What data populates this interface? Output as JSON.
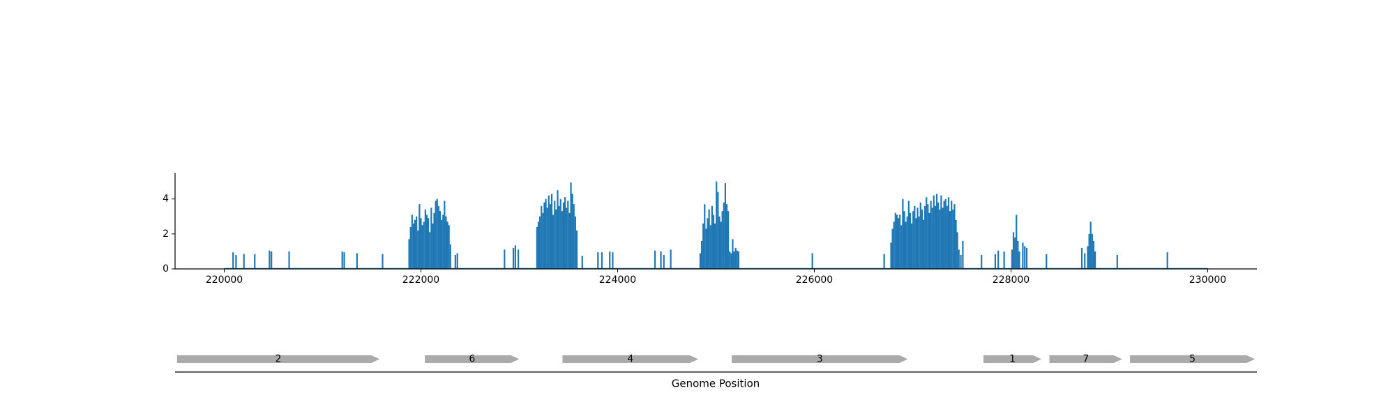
{
  "chart_data": [
    {
      "type": "bar",
      "title": "",
      "xlabel": "",
      "ylabel": "",
      "xlim": [
        219500,
        230500
      ],
      "ylim": [
        0,
        5.5
      ],
      "x_ticks": [
        220000,
        222000,
        224000,
        226000,
        228000,
        230000
      ],
      "x_tick_labels": [
        "220000",
        "222000",
        "224000",
        "226000",
        "228000",
        "230000"
      ],
      "y_ticks": [
        0,
        2,
        4
      ],
      "y_tick_labels": [
        "0",
        "2",
        "4"
      ],
      "grid": false,
      "series": [
        {
          "color": "#1f77b4",
          "points": [
            {
              "x": 220090,
              "y": 0.95
            },
            {
              "x": 220120,
              "y": 0.8
            },
            {
              "x": 220200,
              "y": 0.85
            },
            {
              "x": 220310,
              "y": 0.85
            },
            {
              "x": 220460,
              "y": 1.05
            },
            {
              "x": 220480,
              "y": 1.0
            },
            {
              "x": 220660,
              "y": 1.0
            },
            {
              "x": 221200,
              "y": 1.0
            },
            {
              "x": 221220,
              "y": 0.95
            },
            {
              "x": 221350,
              "y": 0.9
            },
            {
              "x": 221610,
              "y": 0.85
            },
            {
              "x": 221880,
              "y": 1.7
            },
            {
              "x": 221895,
              "y": 2.4
            },
            {
              "x": 221910,
              "y": 3.1
            },
            {
              "x": 221925,
              "y": 2.6
            },
            {
              "x": 221940,
              "y": 2.8
            },
            {
              "x": 221955,
              "y": 3.0
            },
            {
              "x": 221970,
              "y": 2.2
            },
            {
              "x": 221985,
              "y": 3.7
            },
            {
              "x": 222000,
              "y": 2.9
            },
            {
              "x": 222015,
              "y": 2.5
            },
            {
              "x": 222030,
              "y": 2.7
            },
            {
              "x": 222045,
              "y": 3.4
            },
            {
              "x": 222060,
              "y": 3.1
            },
            {
              "x": 222075,
              "y": 2.9
            },
            {
              "x": 222090,
              "y": 2.1
            },
            {
              "x": 222105,
              "y": 3.5
            },
            {
              "x": 222120,
              "y": 2.6
            },
            {
              "x": 222135,
              "y": 3.2
            },
            {
              "x": 222150,
              "y": 3.9
            },
            {
              "x": 222165,
              "y": 4.0
            },
            {
              "x": 222180,
              "y": 3.6
            },
            {
              "x": 222195,
              "y": 3.3
            },
            {
              "x": 222210,
              "y": 2.8
            },
            {
              "x": 222225,
              "y": 3.1
            },
            {
              "x": 222240,
              "y": 3.9
            },
            {
              "x": 222255,
              "y": 3.0
            },
            {
              "x": 222270,
              "y": 2.7
            },
            {
              "x": 222285,
              "y": 2.5
            },
            {
              "x": 222300,
              "y": 1.4
            },
            {
              "x": 222350,
              "y": 0.8
            },
            {
              "x": 222370,
              "y": 0.9
            },
            {
              "x": 222850,
              "y": 1.1
            },
            {
              "x": 222940,
              "y": 1.2
            },
            {
              "x": 222960,
              "y": 1.35
            },
            {
              "x": 222990,
              "y": 1.1
            },
            {
              "x": 223180,
              "y": 2.4
            },
            {
              "x": 223195,
              "y": 2.7
            },
            {
              "x": 223210,
              "y": 3.0
            },
            {
              "x": 223225,
              "y": 3.6
            },
            {
              "x": 223240,
              "y": 3.2
            },
            {
              "x": 223255,
              "y": 3.8
            },
            {
              "x": 223270,
              "y": 4.0
            },
            {
              "x": 223285,
              "y": 3.5
            },
            {
              "x": 223300,
              "y": 4.2
            },
            {
              "x": 223315,
              "y": 3.7
            },
            {
              "x": 223330,
              "y": 4.3
            },
            {
              "x": 223345,
              "y": 3.1
            },
            {
              "x": 223360,
              "y": 3.9
            },
            {
              "x": 223375,
              "y": 3.4
            },
            {
              "x": 223390,
              "y": 4.5
            },
            {
              "x": 223405,
              "y": 3.6
            },
            {
              "x": 223420,
              "y": 4.0
            },
            {
              "x": 223435,
              "y": 3.3
            },
            {
              "x": 223450,
              "y": 3.8
            },
            {
              "x": 223465,
              "y": 4.1
            },
            {
              "x": 223480,
              "y": 3.5
            },
            {
              "x": 223495,
              "y": 3.9
            },
            {
              "x": 223510,
              "y": 3.2
            },
            {
              "x": 223525,
              "y": 4.95
            },
            {
              "x": 223540,
              "y": 4.3
            },
            {
              "x": 223555,
              "y": 3.7
            },
            {
              "x": 223570,
              "y": 3.0
            },
            {
              "x": 223585,
              "y": 2.2
            },
            {
              "x": 223640,
              "y": 0.75
            },
            {
              "x": 223800,
              "y": 0.95
            },
            {
              "x": 223840,
              "y": 0.95
            },
            {
              "x": 223920,
              "y": 1.0
            },
            {
              "x": 223950,
              "y": 0.95
            },
            {
              "x": 224380,
              "y": 1.05
            },
            {
              "x": 224440,
              "y": 1.0
            },
            {
              "x": 224470,
              "y": 0.8
            },
            {
              "x": 224540,
              "y": 1.1
            },
            {
              "x": 224840,
              "y": 0.9
            },
            {
              "x": 224855,
              "y": 1.6
            },
            {
              "x": 224870,
              "y": 2.6
            },
            {
              "x": 224885,
              "y": 3.7
            },
            {
              "x": 224900,
              "y": 2.3
            },
            {
              "x": 224915,
              "y": 2.9
            },
            {
              "x": 224930,
              "y": 3.4
            },
            {
              "x": 224945,
              "y": 2.5
            },
            {
              "x": 224960,
              "y": 3.6
            },
            {
              "x": 224975,
              "y": 3.1
            },
            {
              "x": 224990,
              "y": 2.6
            },
            {
              "x": 225005,
              "y": 5.0
            },
            {
              "x": 225020,
              "y": 4.4
            },
            {
              "x": 225035,
              "y": 3.0
            },
            {
              "x": 225050,
              "y": 2.7
            },
            {
              "x": 225065,
              "y": 3.3
            },
            {
              "x": 225080,
              "y": 3.8
            },
            {
              "x": 225095,
              "y": 4.9
            },
            {
              "x": 225110,
              "y": 3.7
            },
            {
              "x": 225125,
              "y": 3.3
            },
            {
              "x": 225140,
              "y": 1.0
            },
            {
              "x": 225155,
              "y": 0.9
            },
            {
              "x": 225170,
              "y": 1.7
            },
            {
              "x": 225185,
              "y": 1.0
            },
            {
              "x": 225200,
              "y": 1.2
            },
            {
              "x": 225215,
              "y": 1.05
            },
            {
              "x": 225230,
              "y": 1.0
            },
            {
              "x": 225980,
              "y": 0.9
            },
            {
              "x": 226710,
              "y": 0.85
            },
            {
              "x": 226780,
              "y": 1.5
            },
            {
              "x": 226795,
              "y": 2.3
            },
            {
              "x": 226810,
              "y": 2.7
            },
            {
              "x": 226825,
              "y": 3.2
            },
            {
              "x": 226840,
              "y": 3.1
            },
            {
              "x": 226855,
              "y": 2.9
            },
            {
              "x": 226870,
              "y": 3.1
            },
            {
              "x": 226885,
              "y": 2.5
            },
            {
              "x": 226900,
              "y": 4.0
            },
            {
              "x": 226915,
              "y": 3.3
            },
            {
              "x": 226930,
              "y": 2.7
            },
            {
              "x": 226945,
              "y": 3.0
            },
            {
              "x": 226960,
              "y": 3.9
            },
            {
              "x": 226975,
              "y": 3.2
            },
            {
              "x": 226990,
              "y": 2.6
            },
            {
              "x": 227005,
              "y": 3.3
            },
            {
              "x": 227020,
              "y": 3.6
            },
            {
              "x": 227035,
              "y": 2.9
            },
            {
              "x": 227050,
              "y": 3.5
            },
            {
              "x": 227065,
              "y": 3.0
            },
            {
              "x": 227080,
              "y": 3.8
            },
            {
              "x": 227095,
              "y": 3.4
            },
            {
              "x": 227110,
              "y": 2.8
            },
            {
              "x": 227125,
              "y": 3.6
            },
            {
              "x": 227140,
              "y": 4.1
            },
            {
              "x": 227155,
              "y": 3.7
            },
            {
              "x": 227170,
              "y": 3.2
            },
            {
              "x": 227185,
              "y": 3.9
            },
            {
              "x": 227200,
              "y": 3.5
            },
            {
              "x": 227215,
              "y": 4.2
            },
            {
              "x": 227230,
              "y": 3.6
            },
            {
              "x": 227245,
              "y": 4.3
            },
            {
              "x": 227260,
              "y": 3.8
            },
            {
              "x": 227275,
              "y": 3.4
            },
            {
              "x": 227290,
              "y": 4.2
            },
            {
              "x": 227305,
              "y": 3.5
            },
            {
              "x": 227320,
              "y": 3.9
            },
            {
              "x": 227335,
              "y": 4.0
            },
            {
              "x": 227350,
              "y": 3.6
            },
            {
              "x": 227365,
              "y": 4.1
            },
            {
              "x": 227380,
              "y": 3.3
            },
            {
              "x": 227395,
              "y": 3.9
            },
            {
              "x": 227410,
              "y": 3.4
            },
            {
              "x": 227425,
              "y": 3.7
            },
            {
              "x": 227440,
              "y": 2.8
            },
            {
              "x": 227455,
              "y": 2.1
            },
            {
              "x": 227470,
              "y": 1.1
            },
            {
              "x": 227490,
              "y": 0.8
            },
            {
              "x": 227510,
              "y": 1.6
            },
            {
              "x": 227700,
              "y": 0.8
            },
            {
              "x": 227840,
              "y": 0.85
            },
            {
              "x": 227870,
              "y": 1.05
            },
            {
              "x": 227930,
              "y": 1.0
            },
            {
              "x": 228010,
              "y": 1.1
            },
            {
              "x": 228025,
              "y": 2.1
            },
            {
              "x": 228040,
              "y": 1.8
            },
            {
              "x": 228055,
              "y": 3.1
            },
            {
              "x": 228070,
              "y": 1.6
            },
            {
              "x": 228085,
              "y": 1.0
            },
            {
              "x": 228120,
              "y": 1.5
            },
            {
              "x": 228140,
              "y": 1.3
            },
            {
              "x": 228160,
              "y": 1.2
            },
            {
              "x": 228360,
              "y": 0.85
            },
            {
              "x": 228720,
              "y": 1.2
            },
            {
              "x": 228750,
              "y": 0.9
            },
            {
              "x": 228780,
              "y": 1.3
            },
            {
              "x": 228795,
              "y": 2.0
            },
            {
              "x": 228810,
              "y": 2.7
            },
            {
              "x": 228825,
              "y": 2.0
            },
            {
              "x": 228840,
              "y": 1.6
            },
            {
              "x": 228855,
              "y": 1.0
            },
            {
              "x": 229080,
              "y": 0.8
            },
            {
              "x": 229590,
              "y": 0.95
            }
          ]
        }
      ]
    },
    {
      "type": "gene-map",
      "xlabel": "Genome Position",
      "xlim": [
        219500,
        230500
      ],
      "genes": [
        {
          "label": "2",
          "start": 219520,
          "end": 221580,
          "color": "#aaaaaa"
        },
        {
          "label": "6",
          "start": 222040,
          "end": 223000,
          "color": "#aaaaaa"
        },
        {
          "label": "4",
          "start": 223440,
          "end": 224820,
          "color": "#aaaaaa"
        },
        {
          "label": "3",
          "start": 225160,
          "end": 226950,
          "color": "#aaaaaa"
        },
        {
          "label": "1",
          "start": 227720,
          "end": 228310,
          "color": "#aaaaaa"
        },
        {
          "label": "7",
          "start": 228390,
          "end": 229130,
          "color": "#aaaaaa"
        },
        {
          "label": "5",
          "start": 229210,
          "end": 230480,
          "color": "#aaaaaa"
        }
      ]
    }
  ]
}
